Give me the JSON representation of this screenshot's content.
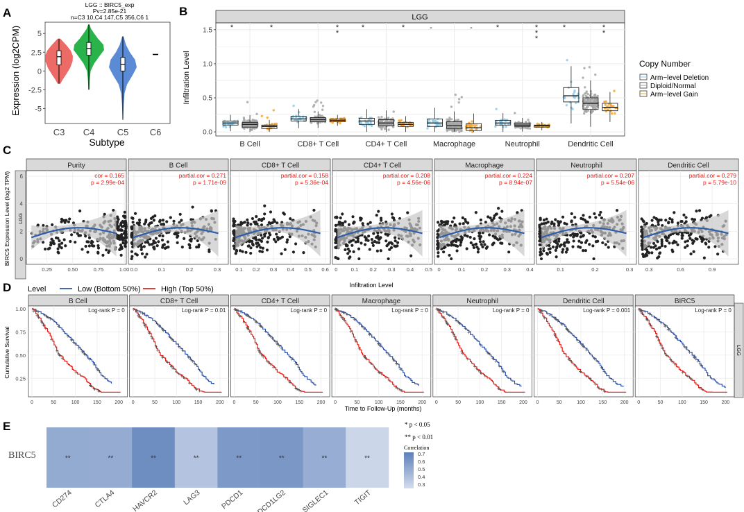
{
  "colors": {
    "strip_bg": "#d9d9d9",
    "panel_border": "#333333",
    "grid": "#ebebeb",
    "c3": "#ec6b66",
    "c4": "#2ab34a",
    "c5": "#5a8bd4",
    "pt_deletion": "#8dcbe8",
    "pt_diploid": "#a6a6a6",
    "pt_gain": "#f4a52b",
    "dot": "#222222",
    "trend": "#2e5ea8",
    "ribbon": "#c8c8c8",
    "low": "#2b4fa8",
    "high": "#e0201a",
    "kmgray": "#555555",
    "sig_text": "#e0201a",
    "heat_low": "#d4dded",
    "heat_high": "#5d7fb9"
  },
  "panels": {
    "A": {
      "letter": "A",
      "title_lines": [
        "LGG :: BIRC5_exp",
        "Pv=2.85e-21",
        "n=C3 10,C4 147,C5 356,C6 1"
      ],
      "ylabel": "Expression (log2CPM)",
      "xlabel": "Subtype",
      "yticks": [
        5,
        2.5,
        0,
        -2.5,
        -5
      ],
      "ytick_labels": [
        "5",
        "2.5",
        "0",
        "-2.5",
        "-5"
      ],
      "ylim": [
        -7,
        6.5
      ]
    },
    "B": {
      "letter": "B",
      "strip": "LGG",
      "ylabel": "Infiltration Level",
      "yticks": [
        0,
        0.5,
        1.0,
        1.5
      ],
      "ytick_labels": [
        "0.0",
        "0.5",
        "1.0",
        "1.5"
      ],
      "ylim": [
        -0.06,
        1.6
      ],
      "legend_title": "Copy Number",
      "legend_items": [
        "Arm−level Deletion",
        "Diploid/Normal",
        "Arm−level Gain"
      ]
    },
    "C": {
      "letter": "C",
      "ylabel": "BIRC5 Expression Level (log2 TPM)",
      "side_strip": "LGG",
      "xlabel": "Infiltration Level",
      "yticks": [
        0,
        2,
        4,
        6
      ],
      "ytick_labels": [
        "0",
        "2",
        "4",
        "6"
      ]
    },
    "D": {
      "letter": "D",
      "legend_label": "Level",
      "low_label": "Low (Bottom 50%)",
      "high_label": "High (Top 50%)",
      "ylabel": "Cumulative Survival",
      "xlabel": "Time to Follow-Up (months)",
      "side_strip": "LGG",
      "yticks": [
        0.25,
        0.5,
        0.75,
        1.0
      ],
      "ytick_labels": [
        "0.25",
        "0.50",
        "0.75",
        "1.00"
      ],
      "xticks": [
        0,
        50,
        100,
        150,
        200
      ],
      "xtick_labels": [
        "0",
        "50",
        "100",
        "150",
        "200"
      ]
    },
    "E": {
      "letter": "E",
      "row_label": "BIRC5",
      "sig1": "* p < 0.05",
      "sig2": "** p < 0.01",
      "colorbar_title": "Correlation",
      "colorbar_ticks": [
        "0.7",
        "0.6",
        "0.5",
        "0.4",
        "0.3"
      ]
    }
  },
  "chart_data": [
    {
      "panel": "A",
      "type": "violin",
      "categories": [
        "C3",
        "C4",
        "C5",
        "C6"
      ],
      "n": [
        10,
        147,
        356,
        1
      ],
      "medians": [
        1.9,
        3.0,
        0.9,
        2.2
      ],
      "q1": [
        0.8,
        2.1,
        0.0,
        2.2
      ],
      "q3": [
        2.7,
        3.8,
        1.8,
        2.2
      ],
      "min": [
        -1.7,
        -2.5,
        -6.5,
        2.2
      ],
      "max": [
        4.3,
        6.2,
        4.6,
        2.2
      ],
      "pvalue": "Pv=2.85e-21"
    },
    {
      "panel": "B",
      "type": "boxplot",
      "categories": [
        "B Cell",
        "CD8+ T Cell",
        "CD4+ T Cell",
        "Macrophage",
        "Neutrophil",
        "Dendritic Cell"
      ],
      "groups": [
        "Arm−level Deletion",
        "Diploid/Normal",
        "Arm−level Gain"
      ],
      "significance": [
        "*",
        "*",
        "**",
        "*",
        "*",
        "-",
        "-",
        "*",
        "***",
        "*",
        "**"
      ],
      "box_stats": [
        [
          [
            0.1,
            0.13,
            0.16
          ],
          [
            0.07,
            0.11,
            0.14
          ],
          [
            0.05,
            0.08,
            0.1
          ]
        ],
        [
          [
            0.16,
            0.19,
            0.23
          ],
          [
            0.15,
            0.18,
            0.21
          ],
          [
            0.15,
            0.17,
            0.19
          ]
        ],
        [
          [
            0.11,
            0.16,
            0.2
          ],
          [
            0.09,
            0.13,
            0.18
          ],
          [
            0.08,
            0.11,
            0.14
          ]
        ],
        [
          [
            0.08,
            0.13,
            0.19
          ],
          [
            0.05,
            0.09,
            0.15
          ],
          [
            0.02,
            0.06,
            0.12
          ]
        ],
        [
          [
            0.1,
            0.13,
            0.17
          ],
          [
            0.08,
            0.1,
            0.13
          ],
          [
            0.07,
            0.09,
            0.1
          ]
        ],
        [
          [
            0.44,
            0.53,
            0.65
          ],
          [
            0.33,
            0.42,
            0.5
          ],
          [
            0.31,
            0.36,
            0.42
          ]
        ]
      ],
      "ylim": [
        0,
        1.6
      ]
    },
    {
      "panel": "C",
      "type": "scatter",
      "facets": [
        {
          "name": "Purity",
          "label1": "cor = 0.165",
          "label2": "p = 2.99e-04",
          "xlim": [
            0.05,
            1.02
          ],
          "xticks": [
            0.25,
            0.5,
            0.75,
            1.0
          ],
          "xtick_labels": [
            "0.25",
            "0.50",
            "0.75",
            "1.00"
          ]
        },
        {
          "name": "B Cell",
          "label1": "partial.cor = 0.271",
          "label2": "p = 1.71e-09",
          "xlim": [
            -0.02,
            0.34
          ],
          "xticks": [
            0,
            0.1,
            0.2,
            0.3
          ],
          "xtick_labels": [
            "0.0",
            "0.1",
            "0.2",
            "0.3"
          ]
        },
        {
          "name": "CD8+ T Cell",
          "label1": "partial.cor = 0.158",
          "label2": "p = 5.36e-04",
          "xlim": [
            0.05,
            0.63
          ],
          "xticks": [
            0.1,
            0.2,
            0.3,
            0.4,
            0.5,
            0.6
          ],
          "xtick_labels": [
            "0.1",
            "0.2",
            "0.3",
            "0.4",
            "0.5",
            "0.6"
          ]
        },
        {
          "name": "CD4+ T Cell",
          "label1": "partial.cor = 0.208",
          "label2": "p = 4.56e-06",
          "xlim": [
            -0.02,
            0.52
          ],
          "xticks": [
            0,
            0.1,
            0.2,
            0.3,
            0.4,
            0.5
          ],
          "xtick_labels": [
            "0",
            "0.1",
            "0.2",
            "0.3",
            "0.4",
            "0.5"
          ]
        },
        {
          "name": "Macrophage",
          "label1": "partial.cor = 0.224",
          "label2": "p = 8.94e-07",
          "xlim": [
            -0.02,
            0.42
          ],
          "xticks": [
            0,
            0.1,
            0.2,
            0.3,
            0.4
          ],
          "xtick_labels": [
            "0",
            "0.1",
            "0.2",
            "0.3",
            "0.4"
          ]
        },
        {
          "name": "Neutrophil",
          "label1": "partial.cor = 0.207",
          "label2": "p = 5.54e-06",
          "xlim": [
            0.03,
            0.32
          ],
          "xticks": [
            0.1,
            0.2,
            0.3
          ],
          "xtick_labels": [
            "0.1",
            "0.2",
            "0.3"
          ]
        },
        {
          "name": "Dendritic Cell",
          "label1": "partial.cor = 0.279",
          "label2": "p = 5.79e-10",
          "xlim": [
            0.2,
            1.15
          ],
          "xticks": [
            0.3,
            0.6,
            0.9
          ],
          "xtick_labels": [
            "0.3",
            "0.6",
            "0.9"
          ]
        }
      ],
      "ylim": [
        -0.4,
        6.4
      ],
      "xlabel": "Infiltration Level"
    },
    {
      "panel": "D",
      "type": "line",
      "facets": [
        {
          "name": "B Cell",
          "pval": "Log-rank P = 0"
        },
        {
          "name": "CD8+ T Cell",
          "pval": "Log-rank P = 0.01"
        },
        {
          "name": "CD4+ T Cell",
          "pval": "Log-rank P = 0"
        },
        {
          "name": "Macrophage",
          "pval": "Log-rank P = 0"
        },
        {
          "name": "Neutrophil",
          "pval": "Log-rank P = 0"
        },
        {
          "name": "Dendritic Cell",
          "pval": "Log-rank P = 0.001"
        },
        {
          "name": "BIRC5",
          "pval": "Log-rank P = 0"
        }
      ],
      "series": [
        {
          "name": "Low (Bottom 50%)",
          "x": [
            0,
            20,
            40,
            60,
            80,
            100,
            120,
            140,
            160,
            180,
            200
          ],
          "y": [
            1.0,
            0.96,
            0.9,
            0.82,
            0.72,
            0.62,
            0.52,
            0.42,
            0.28,
            0.2,
            0.15
          ]
        },
        {
          "name": "High (Top 50%)",
          "x": [
            0,
            20,
            40,
            60,
            80,
            100,
            120,
            140,
            160,
            180,
            200
          ],
          "y": [
            1.0,
            0.88,
            0.72,
            0.52,
            0.42,
            0.32,
            0.25,
            0.15,
            0.1,
            0.1,
            0.1
          ]
        }
      ],
      "xlim": [
        -8,
        220
      ],
      "ylim": [
        0.05,
        1.03
      ]
    },
    {
      "panel": "E",
      "type": "heatmap",
      "row": "BIRC5",
      "columns": [
        "CD274",
        "CTLA4",
        "HAVCR2",
        "LAG3",
        "PDCD1",
        "PDCD1LG2",
        "SIGLEC1",
        "TIGIT"
      ],
      "values": [
        0.5,
        0.49,
        0.67,
        0.35,
        0.6,
        0.61,
        0.48,
        0.24
      ],
      "significance": [
        "**",
        "**",
        "**",
        "**",
        "**",
        "**",
        "**",
        "**"
      ],
      "scale_min": 0.2,
      "scale_max": 0.75
    }
  ]
}
